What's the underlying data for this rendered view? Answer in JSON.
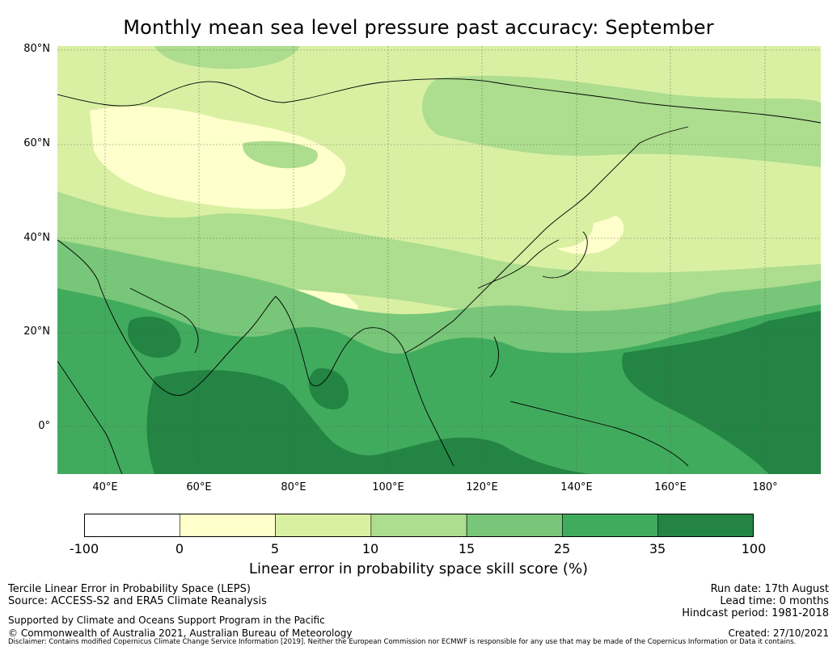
{
  "title": "Monthly mean sea level pressure past accuracy: September",
  "map": {
    "lat_labels": [
      "80°N",
      "60°N",
      "40°N",
      "20°N",
      "0°"
    ],
    "lon_labels": [
      "40°E",
      "60°E",
      "80°E",
      "100°E",
      "120°E",
      "140°E",
      "160°E",
      "180°"
    ],
    "lat_range": [
      -10,
      80
    ],
    "lon_range": [
      30,
      192
    ],
    "gridlines": true,
    "coastlines": true
  },
  "colorbar": {
    "ticks": [
      "-100",
      "0",
      "5",
      "10",
      "15",
      "25",
      "35",
      "100"
    ],
    "colors": [
      "#ffffff",
      "#ffffcc",
      "#d9f0a3",
      "#addd8e",
      "#78c679",
      "#41ab5d",
      "#238443"
    ],
    "label": "Linear error in probability space skill score (%)"
  },
  "footer": {
    "left1": "Tercile Linear Error in Probability Space (LEPS)",
    "left2": "Source: ACCESS-S2 and ERA5 Climate Reanalysis",
    "left3": "Supported by Climate and Oceans Support Program in the Pacific",
    "left4": "© Commonwealth of Australia 2021, Australian Bureau of Meteorology",
    "disclaimer": "Disclaimer: Contains modified Copernicus Climate Change Service Information [2019]. Neither the European Commission nor ECMWF is responsible for any use that may be made of the Copernicus Information or Data it contains.",
    "run_date": "Run date: 17th August",
    "lead_time": "Lead time: 0 months",
    "hindcast": "Hindcast period: 1981-2018",
    "created": "Created: 27/10/2021"
  }
}
